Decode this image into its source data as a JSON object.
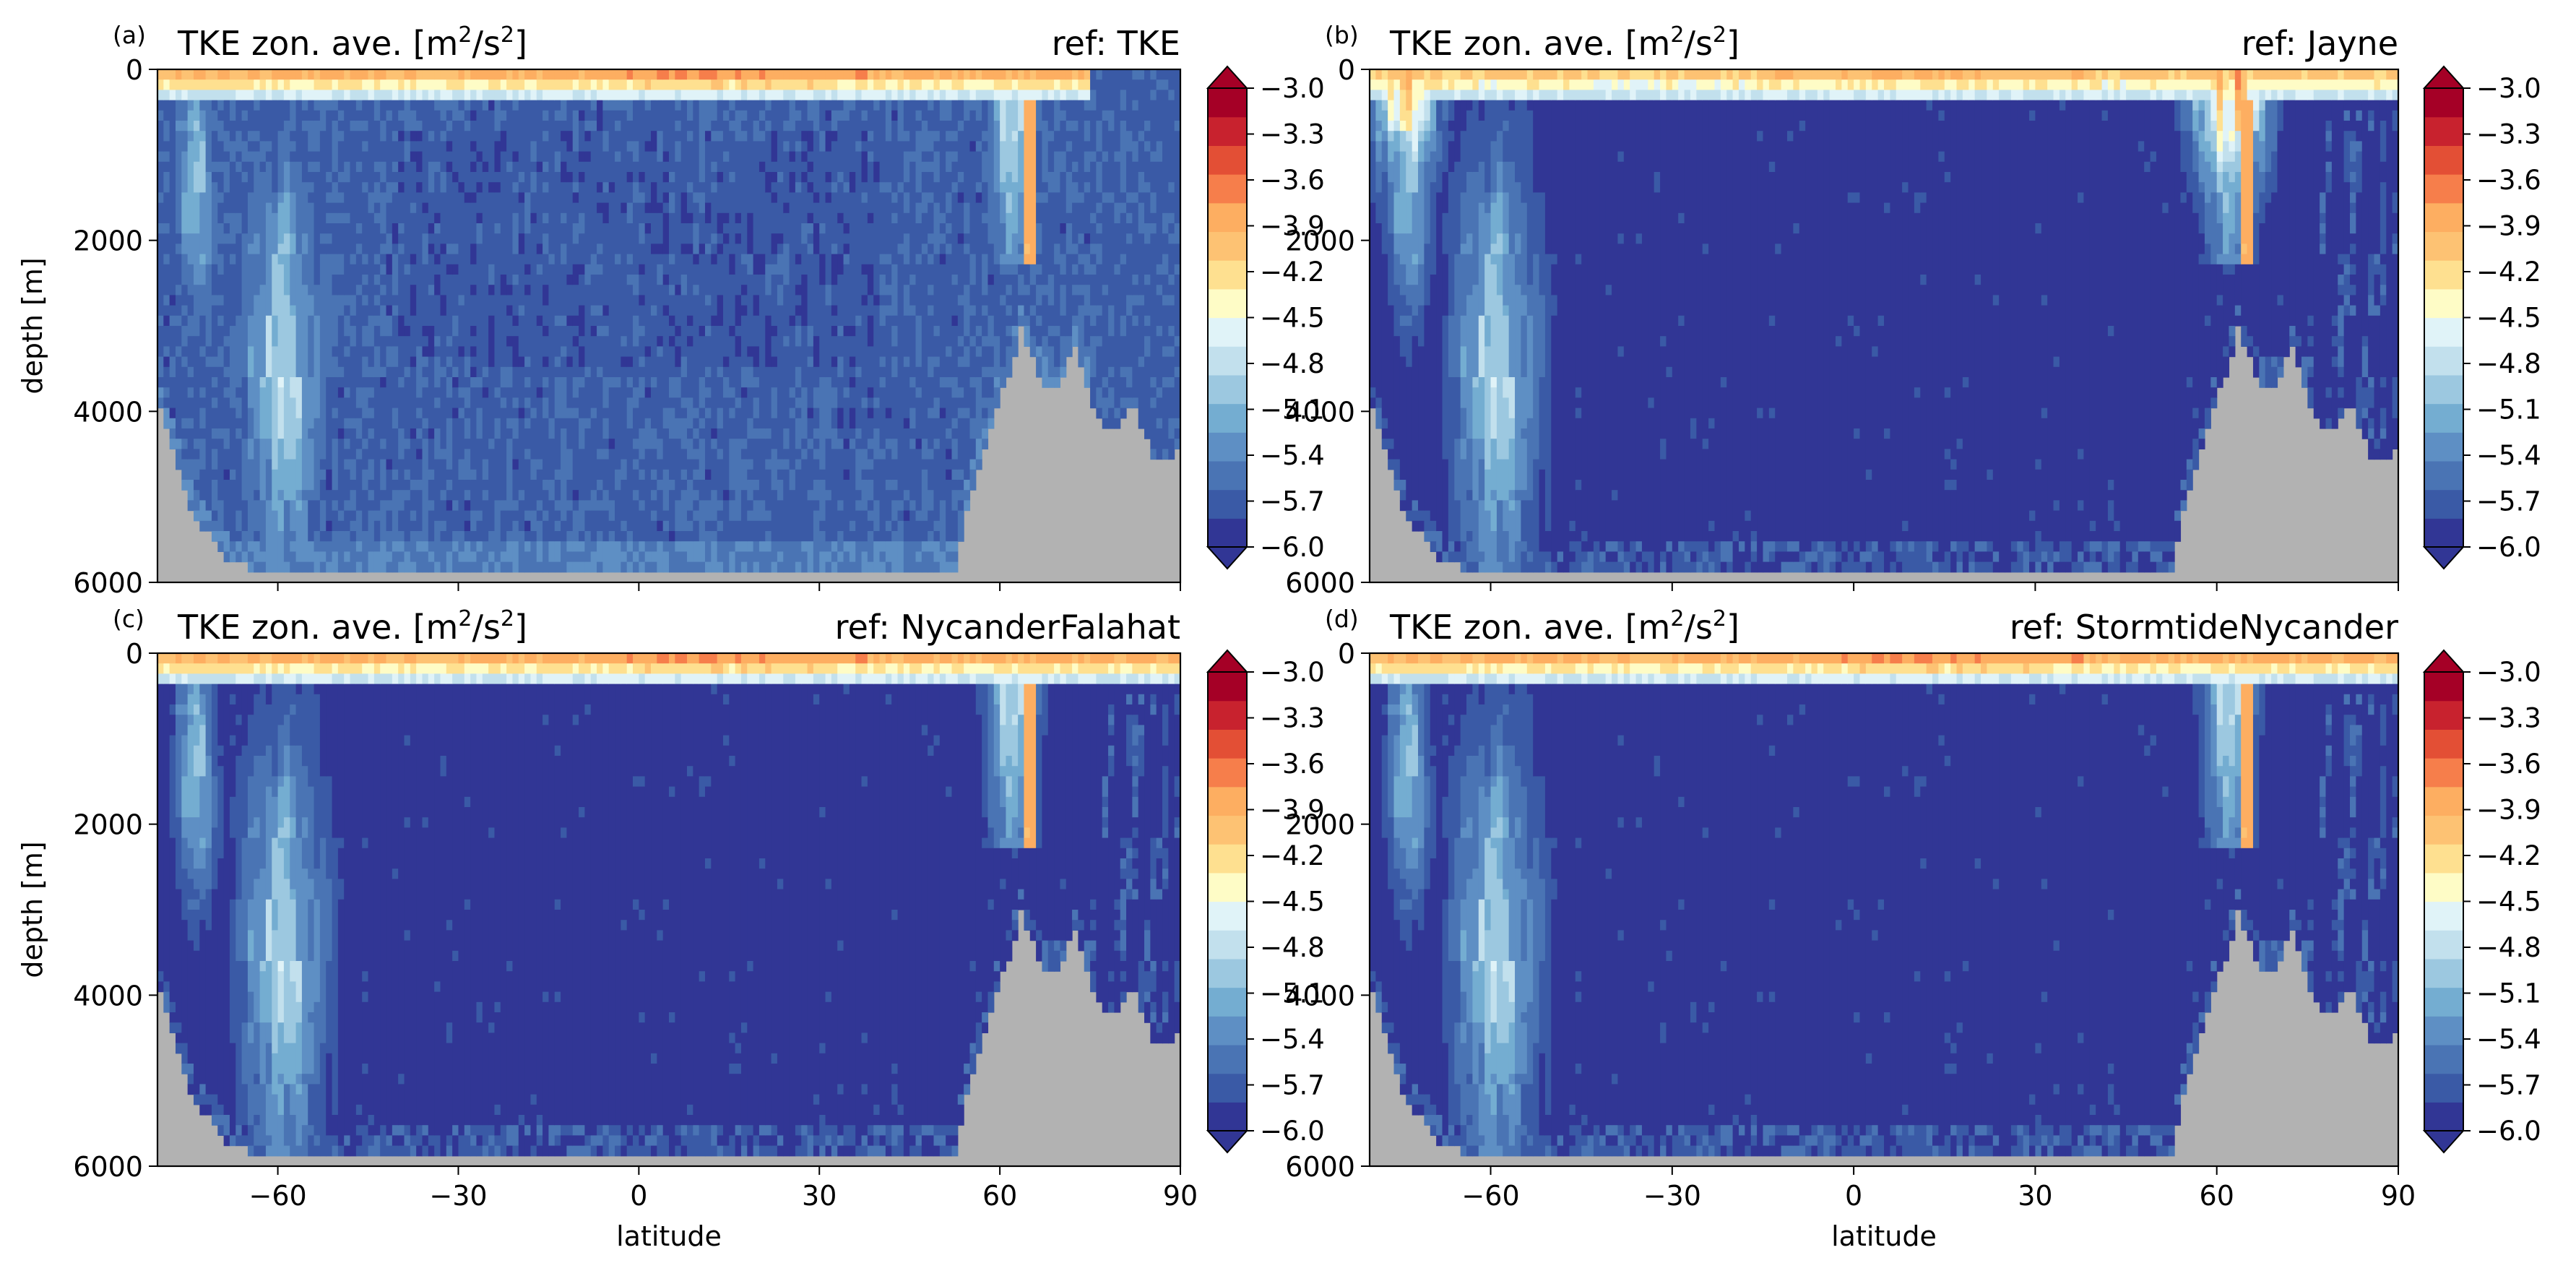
{
  "figure": {
    "units_title_prefix": "TKE zon. ave. [m",
    "units_title_mid": "/s",
    "units_title_suffix": "]",
    "units_superscript": "2",
    "ylabel": "depth [m]",
    "xlabel": "latitude",
    "colorbar_ticks": [
      "−3.0",
      "−3.3",
      "−3.6",
      "−3.9",
      "−4.2",
      "−4.5",
      "−4.8",
      "−5.1",
      "−5.4",
      "−5.7",
      "−6.0"
    ],
    "colormap": [
      "#313695",
      "#3a5aa6",
      "#4a74b4",
      "#5e8fc4",
      "#74add1",
      "#9cc8e0",
      "#c2e0ed",
      "#e0f3f8",
      "#fefcc6",
      "#fee090",
      "#fdc273",
      "#fdae61",
      "#f67e4b",
      "#e34f35",
      "#c8222e",
      "#a50026"
    ],
    "land_color": "#b2b2b2"
  },
  "chart_data": [
    {
      "type": "heatmap",
      "panel_label": "(a)",
      "title": "TKE zon. ave. [m2/s2]",
      "ref_label": "ref: TKE",
      "variant": "TKE",
      "xlabel": "",
      "ylabel": "depth [m]",
      "xlim": [
        -80,
        90
      ],
      "ylim": [
        6000,
        0
      ],
      "yticks": [
        "0",
        "2000",
        "4000",
        "6000"
      ],
      "xticks": [],
      "clim": [
        -6.0,
        -3.0
      ],
      "background_log10_tke": -5.8
    },
    {
      "type": "heatmap",
      "panel_label": "(b)",
      "title": "TKE zon. ave. [m2/s2]",
      "ref_label": "ref: Jayne",
      "variant": "Jayne",
      "xlabel": "",
      "ylabel": "",
      "xlim": [
        -80,
        90
      ],
      "ylim": [
        6000,
        0
      ],
      "yticks": [
        "0",
        "2000",
        "4000",
        "6000"
      ],
      "xticks": [],
      "clim": [
        -6.0,
        -3.0
      ],
      "background_log10_tke": -6.0
    },
    {
      "type": "heatmap",
      "panel_label": "(c)",
      "title": "TKE zon. ave. [m2/s2]",
      "ref_label": "ref: NycanderFalahat",
      "variant": "NycanderFalahat",
      "xlabel": "latitude",
      "ylabel": "depth [m]",
      "xlim": [
        -80,
        90
      ],
      "ylim": [
        6000,
        0
      ],
      "yticks": [
        "0",
        "2000",
        "4000",
        "6000"
      ],
      "xticks": [
        "−60",
        "−30",
        "0",
        "30",
        "60",
        "90"
      ],
      "clim": [
        -6.0,
        -3.0
      ],
      "background_log10_tke": -6.0
    },
    {
      "type": "heatmap",
      "panel_label": "(d)",
      "title": "TKE zon. ave. [m2/s2]",
      "ref_label": "ref: StormtideNycander",
      "variant": "StormtideNycander",
      "xlabel": "latitude",
      "ylabel": "",
      "xlim": [
        -80,
        90
      ],
      "ylim": [
        6000,
        0
      ],
      "yticks": [
        "0",
        "2000",
        "4000",
        "6000"
      ],
      "xticks": [
        "−60",
        "−30",
        "0",
        "30",
        "60",
        "90"
      ],
      "clim": [
        -6.0,
        -3.0
      ],
      "background_log10_tke": -6.0
    }
  ]
}
